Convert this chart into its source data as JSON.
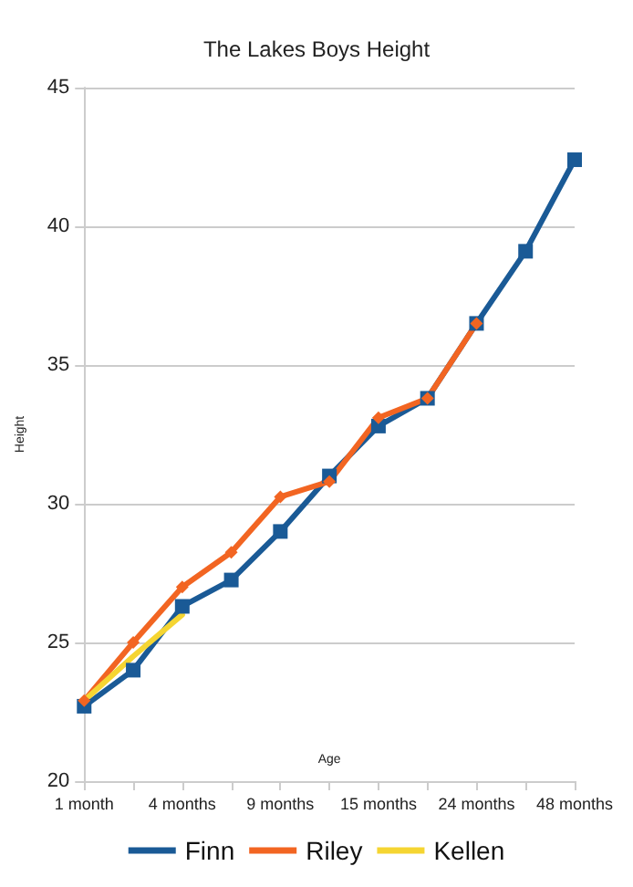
{
  "chart_data": {
    "type": "line",
    "title": "The Lakes Boys Height",
    "xlabel": "Age",
    "ylabel": "Height",
    "categories": [
      "1 month",
      null,
      "4 months",
      null,
      "9 months",
      null,
      "15 months",
      null,
      "24 months",
      null,
      "48 months"
    ],
    "series": [
      {
        "name": "Finn",
        "color": "#1a5a96",
        "marker": "square",
        "values": [
          22.7,
          24.0,
          26.3,
          27.25,
          29.0,
          31.0,
          32.8,
          33.8,
          36.5,
          39.1,
          42.4
        ]
      },
      {
        "name": "Riley",
        "color": "#f26522",
        "marker": "diamond",
        "values": [
          22.9,
          25.0,
          27.0,
          28.25,
          30.25,
          30.8,
          33.1,
          33.8,
          36.5,
          null,
          null
        ]
      },
      {
        "name": "Kellen",
        "color": "#f5d532",
        "marker": "none",
        "values": [
          22.9,
          24.5,
          26.0,
          null,
          null,
          null,
          null,
          null,
          null,
          null,
          null
        ]
      }
    ],
    "ylim": [
      20,
      45
    ],
    "yticks": [
      20,
      25,
      30,
      35,
      40,
      45
    ],
    "grid": "y",
    "legend": "bottom",
    "line_style": "solid"
  }
}
